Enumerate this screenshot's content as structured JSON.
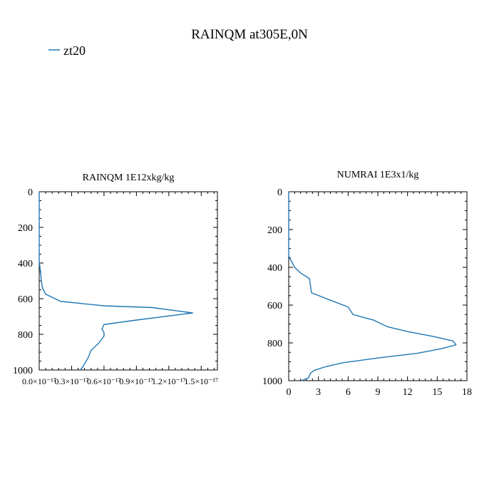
{
  "figure": {
    "title": "RAINQM at305E,0N",
    "legend": {
      "label": "zt20",
      "color": "#1f77b4",
      "placement": "top-left"
    }
  },
  "chart_data": [
    {
      "type": "line",
      "title": "RAINQM  1E12xkg/kg",
      "xlabel": "",
      "ylabel": "",
      "xlim": [
        0,
        1.65e-17
      ],
      "ylim": [
        1000,
        0
      ],
      "y_inverted": true,
      "xticks": [
        0,
        3e-18,
        6e-18,
        9e-18,
        1.2e-17,
        1.5e-17
      ],
      "xtick_labels": [
        "0.0×10⁻¹⁷",
        "0.3×10⁻¹⁷",
        "0.6×10⁻¹⁷",
        "0.9×10⁻¹⁷",
        "1.2×10⁻¹⁷",
        "1.5×10⁻¹⁷"
      ],
      "yticks": [
        0,
        200,
        400,
        600,
        800,
        1000
      ],
      "ytick_labels": [
        "0",
        "200",
        "400",
        "600",
        "800",
        "1000"
      ],
      "series": [
        {
          "name": "zt20",
          "color": "#1f77b4",
          "x": [
            0,
            0,
            1e-19,
            2e-19,
            3e-19,
            6e-19,
            2e-18,
            6e-18,
            1.05e-17,
            1.42e-17,
            9e-18,
            6e-18,
            5.8e-18,
            6e-18,
            6e-18,
            5.5e-18,
            4.8e-18,
            4.5e-18,
            4.2e-18,
            4e-18,
            3.8e-18
          ],
          "y": [
            0,
            390,
            440,
            500,
            540,
            575,
            615,
            640,
            650,
            680,
            720,
            745,
            770,
            790,
            810,
            850,
            890,
            935,
            965,
            985,
            1000
          ]
        }
      ]
    },
    {
      "type": "line",
      "title": "NUMRAI  1E3x1/kg",
      "xlabel": "",
      "ylabel": "",
      "xlim": [
        0,
        18
      ],
      "ylim": [
        1000,
        0
      ],
      "y_inverted": true,
      "xticks": [
        0,
        3,
        6,
        9,
        12,
        15,
        18
      ],
      "xtick_labels": [
        "0",
        "3",
        "6",
        "9",
        "12",
        "15",
        "18"
      ],
      "yticks": [
        0,
        200,
        400,
        600,
        800,
        1000
      ],
      "ytick_labels": [
        "0",
        "200",
        "400",
        "600",
        "800",
        "1000"
      ],
      "series": [
        {
          "name": "zt20",
          "color": "#1f77b4",
          "x": [
            0,
            0,
            0.6,
            1.2,
            2.1,
            2.3,
            4.5,
            6.0,
            6.5,
            8.6,
            10.0,
            12.0,
            14.5,
            16.6,
            16.9,
            15.5,
            13.0,
            9.0,
            5.5,
            3.8,
            2.6,
            2.2,
            2.0,
            1.3
          ],
          "y": [
            0,
            340,
            400,
            430,
            460,
            535,
            580,
            610,
            650,
            680,
            715,
            740,
            765,
            790,
            810,
            830,
            855,
            880,
            905,
            925,
            945,
            960,
            985,
            1000
          ]
        }
      ]
    }
  ]
}
